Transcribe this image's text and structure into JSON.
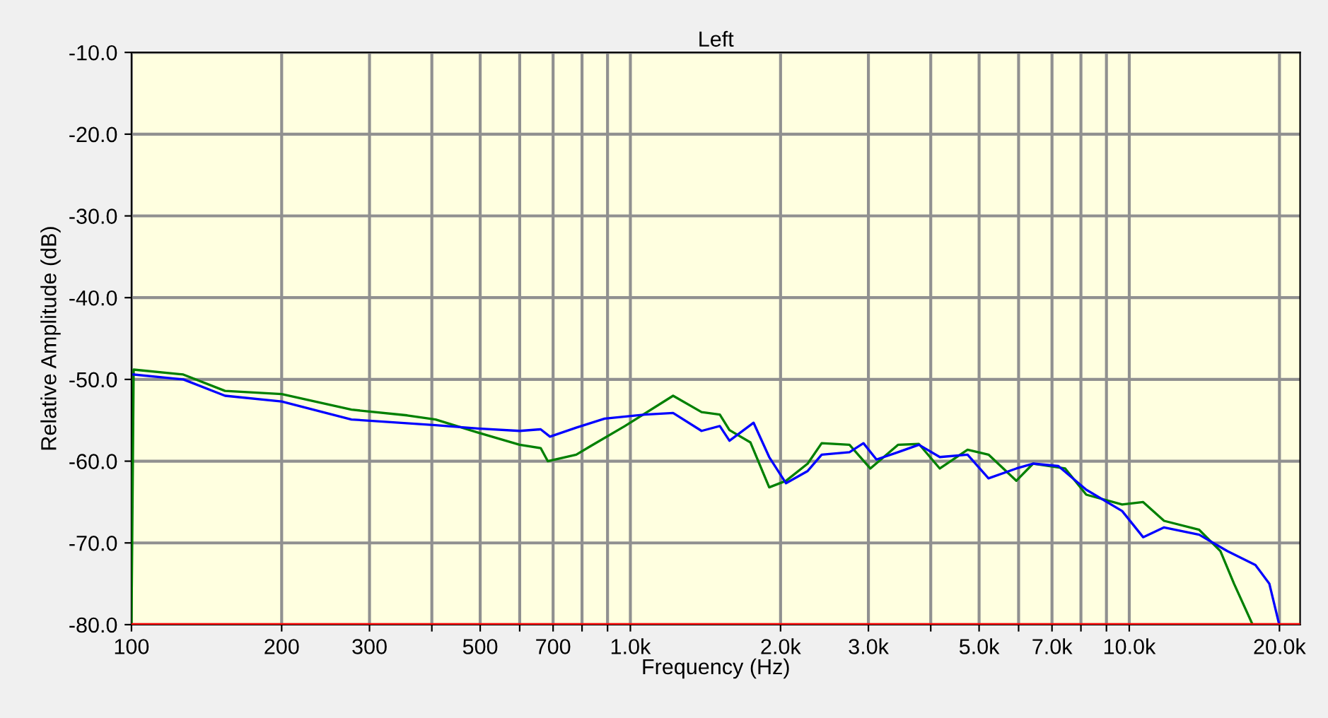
{
  "chart_data": {
    "type": "line",
    "title": "Left",
    "xlabel": "Frequency (Hz)",
    "ylabel": "Relative Amplitude (dB)",
    "log": "x",
    "grid": true,
    "marker": "none",
    "line_style": "solid",
    "xlim": [
      100,
      22000
    ],
    "ylim": [
      -80,
      -10
    ],
    "xticks": [
      100,
      200,
      300,
      {
        "value": 400,
        "label": null
      },
      500,
      {
        "value": 600,
        "label": null
      },
      700,
      {
        "value": 800,
        "label": null
      },
      {
        "value": 900,
        "label": null
      },
      {
        "value": 1000,
        "label": "1.0k"
      },
      {
        "value": 2000,
        "label": "2.0k"
      },
      {
        "value": 3000,
        "label": "3.0k"
      },
      {
        "value": 4000,
        "label": null
      },
      {
        "value": 5000,
        "label": "5.0k"
      },
      {
        "value": 6000,
        "label": null
      },
      {
        "value": 7000,
        "label": "7.0k"
      },
      {
        "value": 8000,
        "label": null
      },
      {
        "value": 9000,
        "label": null
      },
      {
        "value": 10000,
        "label": "10.0k"
      },
      {
        "value": 20000,
        "label": "20.0k"
      }
    ],
    "yticks": [
      {
        "value": -80,
        "label": "-80.0"
      },
      {
        "value": -70,
        "label": "-70.0"
      },
      {
        "value": -60,
        "label": "-60.0"
      },
      {
        "value": -50,
        "label": "-50.0"
      },
      {
        "value": -40,
        "label": "-40.0"
      },
      {
        "value": -30,
        "label": "-30.0"
      },
      {
        "value": -20,
        "label": "-20.0"
      },
      {
        "value": -10,
        "label": "-10.0"
      }
    ],
    "ref_lines": [
      {
        "axis": "y",
        "value": -80,
        "label": null,
        "color": "#ff0000",
        "line_style": "solid"
      }
    ],
    "series": [
      {
        "color": "#008000",
        "x": [
          100,
          101,
          127,
          154,
          200,
          276,
          357,
          407,
          495,
          600,
          661,
          683,
          779,
          830,
          975,
          1218,
          1389,
          1511,
          1580,
          1740,
          1898,
          2051,
          2267,
          2418,
          2749,
          3026,
          3439,
          3787,
          4171,
          4741,
          5222,
          5937,
          6416,
          7440,
          8200,
          9676,
          10661,
          11742,
          13810,
          15230,
          16220,
          17670
        ],
        "values": [
          -80,
          -48.8,
          -49.4,
          -51.4,
          -51.8,
          -53.7,
          -54.4,
          -54.9,
          -56.5,
          -58.0,
          -58.4,
          -60.0,
          -59.2,
          -58.2,
          -55.7,
          -52.0,
          -54.0,
          -54.3,
          -56.2,
          -57.7,
          -63.2,
          -62.4,
          -60.3,
          -57.8,
          -58.0,
          -60.9,
          -58.0,
          -57.9,
          -60.9,
          -58.6,
          -59.2,
          -62.4,
          -60.3,
          -60.9,
          -64.1,
          -65.3,
          -65.0,
          -67.3,
          -68.4,
          -71.0,
          -75.0,
          -80
        ]
      },
      {
        "color": "#0000ff",
        "x": [
          101,
          127,
          154,
          200,
          276,
          407,
          495,
          600,
          661,
          690,
          779,
          888,
          1070,
          1218,
          1389,
          1511,
          1580,
          1766,
          1898,
          2051,
          2267,
          2418,
          2749,
          2932,
          3114,
          3439,
          3787,
          4171,
          4741,
          5222,
          5937,
          6416,
          7210,
          8200,
          9676,
          10661,
          11742,
          13810,
          15720,
          17900,
          19090,
          19980
        ],
        "values": [
          -49.4,
          -50.0,
          -52.0,
          -52.7,
          -54.9,
          -55.6,
          -56.0,
          -56.3,
          -56.1,
          -57.0,
          -55.9,
          -54.8,
          -54.3,
          -54.1,
          -56.3,
          -55.7,
          -57.5,
          -55.3,
          -59.5,
          -62.7,
          -61.2,
          -59.2,
          -58.9,
          -57.8,
          -59.8,
          -58.9,
          -58.0,
          -59.5,
          -59.2,
          -62.1,
          -60.9,
          -60.3,
          -60.6,
          -63.5,
          -66.1,
          -69.3,
          -68.1,
          -69.0,
          -71.0,
          -72.7,
          -75.0,
          -80
        ]
      }
    ]
  }
}
